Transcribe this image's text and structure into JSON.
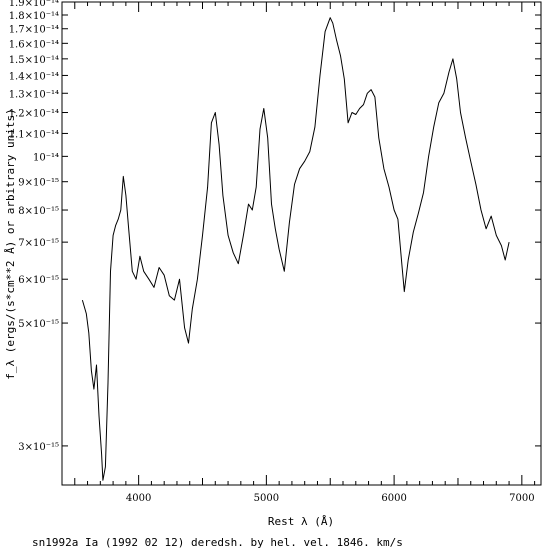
{
  "chart_data": {
    "type": "line",
    "title": "",
    "caption": "sn1992a Ia (1992 02 12) deredsh. by hel. vel.  1846. km/s",
    "xlabel": "Rest λ (Å)",
    "ylabel": "f_λ (ergs/(s*cm**2 Å) or arbitrary units)",
    "xlim": [
      3400,
      7150
    ],
    "ylim": [
      2.55e-15,
      1.9e-14
    ],
    "yscale": "log",
    "grid": false,
    "x_ticks": [
      4000,
      5000,
      6000,
      7000
    ],
    "x_tick_labels": [
      "4000",
      "5000",
      "6000",
      "7000"
    ],
    "y_ticks": [
      3e-15,
      5e-15,
      6e-15,
      7e-15,
      8e-15,
      9e-15,
      1e-14,
      1.1e-14,
      1.2e-14,
      1.3e-14,
      1.4e-14,
      1.5e-14,
      1.6e-14,
      1.7e-14,
      1.8e-14,
      1.9e-14
    ],
    "y_tick_labels": [
      "3×10⁻¹⁵",
      "5×10⁻¹⁵",
      "6×10⁻¹⁵",
      "7×10⁻¹⁵",
      "8×10⁻¹⁵",
      "9×10⁻¹⁵",
      "10⁻¹⁴",
      "1.1×10⁻¹⁴",
      "1.2×10⁻¹⁴",
      "1.3×10⁻¹⁴",
      "1.4×10⁻¹⁴",
      "1.5×10⁻¹⁴",
      "1.6×10⁻¹⁴",
      "1.7×10⁻¹⁴",
      "1.8×10⁻¹⁴",
      "1.9×10⁻¹⁴"
    ],
    "series": [
      {
        "name": "",
        "color": "#000000",
        "x": [
          3560,
          3590,
          3610,
          3630,
          3650,
          3670,
          3690,
          3710,
          3720,
          3740,
          3760,
          3780,
          3800,
          3820,
          3840,
          3860,
          3880,
          3900,
          3920,
          3950,
          3980,
          4010,
          4040,
          4080,
          4120,
          4160,
          4200,
          4240,
          4280,
          4320,
          4360,
          4390,
          4420,
          4460,
          4500,
          4540,
          4570,
          4600,
          4630,
          4660,
          4700,
          4740,
          4780,
          4820,
          4860,
          4890,
          4920,
          4950,
          4980,
          5010,
          5040,
          5070,
          5100,
          5140,
          5180,
          5220,
          5260,
          5300,
          5340,
          5380,
          5420,
          5460,
          5500,
          5520,
          5550,
          5580,
          5610,
          5640,
          5670,
          5700,
          5730,
          5760,
          5790,
          5820,
          5850,
          5880,
          5920,
          5960,
          6000,
          6030,
          6060,
          6080,
          6110,
          6150,
          6190,
          6230,
          6270,
          6310,
          6350,
          6390,
          6430,
          6460,
          6490,
          6520,
          6560,
          6600,
          6640,
          6680,
          6720,
          6760,
          6800,
          6840,
          6870,
          6900
        ],
        "y": [
          5.5e-15,
          5.2e-15,
          4.8e-15,
          4.1e-15,
          3.8e-15,
          4.2e-15,
          3.4e-15,
          2.9e-15,
          2.6e-15,
          2.75e-15,
          3.9e-15,
          6.2e-15,
          7.2e-15,
          7.5e-15,
          7.7e-15,
          8e-15,
          9.2e-15,
          8.5e-15,
          7.5e-15,
          6.2e-15,
          6e-15,
          6.6e-15,
          6.2e-15,
          6e-15,
          5.8e-15,
          6.3e-15,
          6.1e-15,
          5.6e-15,
          5.5e-15,
          6e-15,
          4.9e-15,
          4.6e-15,
          5.3e-15,
          6e-15,
          7.2e-15,
          8.8e-15,
          1.15e-14,
          1.2e-14,
          1.05e-14,
          8.5e-15,
          7.2e-15,
          6.7e-15,
          6.4e-15,
          7.2e-15,
          8.2e-15,
          8e-15,
          8.8e-15,
          1.12e-14,
          1.22e-14,
          1.08e-14,
          8.2e-15,
          7.4e-15,
          6.8e-15,
          6.2e-15,
          7.6e-15,
          8.9e-15,
          9.5e-15,
          9.8e-15,
          1.02e-14,
          1.13e-14,
          1.4e-14,
          1.68e-14,
          1.78e-14,
          1.74e-14,
          1.62e-14,
          1.52e-14,
          1.38e-14,
          1.15e-14,
          1.2e-14,
          1.19e-14,
          1.22e-14,
          1.24e-14,
          1.3e-14,
          1.32e-14,
          1.28e-14,
          1.08e-14,
          9.5e-15,
          8.8e-15,
          8e-15,
          7.7e-15,
          6.4e-15,
          5.7e-15,
          6.5e-15,
          7.3e-15,
          7.9e-15,
          8.6e-15,
          1e-14,
          1.13e-14,
          1.25e-14,
          1.3e-14,
          1.42e-14,
          1.5e-14,
          1.38e-14,
          1.2e-14,
          1.08e-14,
          9.8e-15,
          8.9e-15,
          8e-15,
          7.4e-15,
          7.8e-15,
          7.2e-15,
          6.9e-15,
          6.5e-15,
          7e-15
        ]
      }
    ]
  }
}
